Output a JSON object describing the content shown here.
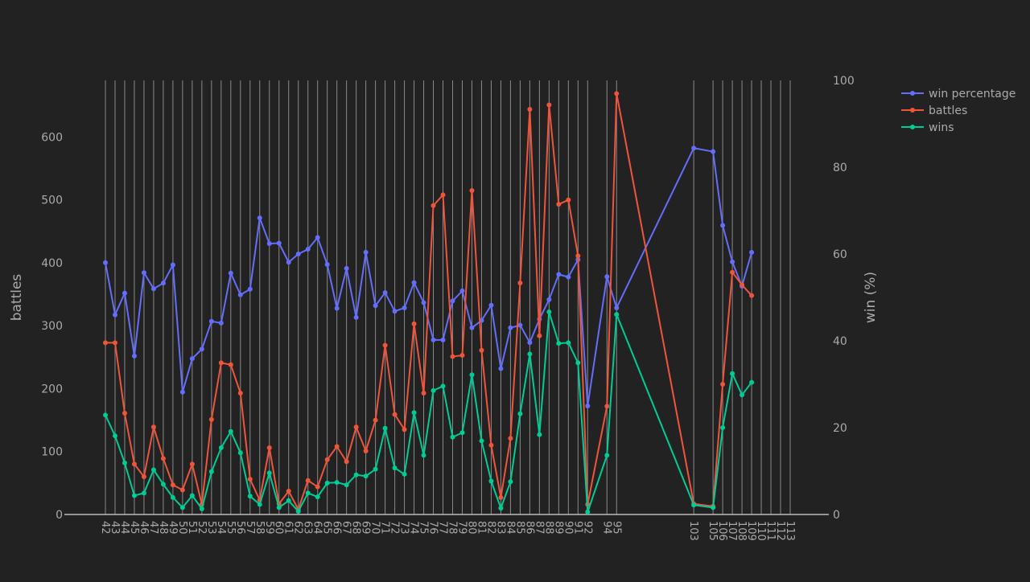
{
  "colors": {
    "background": "#222222",
    "grid": "#8a8a8a",
    "axis_text": "#aaaaaa",
    "win_percentage": "#636EFA",
    "battles": "#EF553B",
    "wins": "#00CC96"
  },
  "chart_data": {
    "type": "line",
    "x_labels": [
      "42",
      "43",
      "44",
      "45",
      "46",
      "47",
      "48",
      "49",
      "50",
      "51",
      "52",
      "53",
      "54",
      "55",
      "56",
      "57",
      "58",
      "59",
      "60",
      "61",
      "62",
      "63",
      "64",
      "65",
      "66",
      "67",
      "68",
      "69",
      "70",
      "71",
      "72",
      "73",
      "74",
      "75",
      "76",
      "77",
      "78",
      "79",
      "80",
      "81",
      "82",
      "83",
      "84",
      "85",
      "86",
      "87",
      "88",
      "89",
      "90",
      "91",
      "92",
      "94",
      "95",
      "103",
      "105",
      "106",
      "107",
      "108",
      "109",
      "110",
      "111",
      "112",
      "113"
    ],
    "xlabel": "",
    "left_axis": {
      "label": "battles",
      "range": [
        0,
        690
      ],
      "ticks": [
        0,
        100,
        200,
        300,
        400,
        500,
        600
      ]
    },
    "right_axis": {
      "label": "win (%)",
      "range": [
        0,
        100
      ],
      "ticks": [
        0,
        20,
        40,
        60,
        80,
        100
      ]
    },
    "grid": "vertical",
    "legend_position": "top-right",
    "series": [
      {
        "name": "win percentage",
        "axis": "right",
        "color_key": "win_percentage",
        "points": [
          [
            "42",
            58
          ],
          [
            "43",
            46
          ],
          [
            "44",
            51
          ],
          [
            "45",
            36.5
          ],
          [
            "46",
            55.7
          ],
          [
            "47",
            52
          ],
          [
            "48",
            53.3
          ],
          [
            "49",
            57.5
          ],
          [
            "50",
            28.2
          ],
          [
            "51",
            35.9
          ],
          [
            "52",
            38.1
          ],
          [
            "53",
            44.5
          ],
          [
            "54",
            44.1
          ],
          [
            "55",
            55.6
          ],
          [
            "56",
            50.6
          ],
          [
            "57",
            51.9
          ],
          [
            "58",
            68.3
          ],
          [
            "59",
            62.4
          ],
          [
            "60",
            62.5
          ],
          [
            "61",
            58.1
          ],
          [
            "62",
            60
          ],
          [
            "63",
            61.1
          ],
          [
            "64",
            63.8
          ],
          [
            "65",
            57.6
          ],
          [
            "66",
            47.5
          ],
          [
            "67",
            56.7
          ],
          [
            "68",
            45.4
          ],
          [
            "69",
            60.4
          ],
          [
            "70",
            48.1
          ],
          [
            "71",
            51.1
          ],
          [
            "72",
            46.8
          ],
          [
            "73",
            47.6
          ],
          [
            "74",
            53.4
          ],
          [
            "75",
            48.8
          ],
          [
            "76",
            40.2
          ],
          [
            "77",
            40.2
          ],
          [
            "78",
            49.2
          ],
          [
            "79",
            51.5
          ],
          [
            "80",
            43
          ],
          [
            "81",
            44.7
          ],
          [
            "82",
            48.2
          ],
          [
            "83",
            33.6
          ],
          [
            "84",
            43
          ],
          [
            "85",
            43.6
          ],
          [
            "86",
            39.6
          ],
          [
            "87",
            45
          ],
          [
            "88",
            49.5
          ],
          [
            "89",
            55.3
          ],
          [
            "90",
            54.7
          ],
          [
            "91",
            58.7
          ],
          [
            "92",
            25
          ],
          [
            "94",
            54.8
          ],
          [
            "95",
            47.6
          ],
          [
            "103",
            84.4
          ],
          [
            "105",
            83.6
          ],
          [
            "106",
            66.6
          ],
          [
            "107",
            58.2
          ],
          [
            "108",
            52.6
          ],
          [
            "109",
            60.4
          ]
        ]
      },
      {
        "name": "battles",
        "axis": "left",
        "color_key": "battles",
        "points": [
          [
            "42",
            273
          ],
          [
            "43",
            273
          ],
          [
            "44",
            161
          ],
          [
            "45",
            80
          ],
          [
            "46",
            60
          ],
          [
            "47",
            139
          ],
          [
            "48",
            89
          ],
          [
            "49",
            47
          ],
          [
            "50",
            39
          ],
          [
            "51",
            80
          ],
          [
            "52",
            16
          ],
          [
            "53",
            151
          ],
          [
            "54",
            241
          ],
          [
            "55",
            238
          ],
          [
            "56",
            193
          ],
          [
            "57",
            56
          ],
          [
            "58",
            23
          ],
          [
            "59",
            106
          ],
          [
            "60",
            17
          ],
          [
            "61",
            37
          ],
          [
            "62",
            8
          ],
          [
            "63",
            54
          ],
          [
            "64",
            44
          ],
          [
            "65",
            87
          ],
          [
            "66",
            108
          ],
          [
            "67",
            84
          ],
          [
            "68",
            139
          ],
          [
            "69",
            101
          ],
          [
            "70",
            150
          ],
          [
            "71",
            269
          ],
          [
            "72",
            159
          ],
          [
            "73",
            135
          ],
          [
            "74",
            303
          ],
          [
            "75",
            193
          ],
          [
            "76",
            491
          ],
          [
            "77",
            508
          ],
          [
            "78",
            251
          ],
          [
            "79",
            253
          ],
          [
            "80",
            515
          ],
          [
            "81",
            261
          ],
          [
            "82",
            110
          ],
          [
            "83",
            27
          ],
          [
            "84",
            121
          ],
          [
            "85",
            368
          ],
          [
            "86",
            644
          ],
          [
            "87",
            284
          ],
          [
            "88",
            651
          ],
          [
            "89",
            493
          ],
          [
            "90",
            500
          ],
          [
            "91",
            411
          ],
          [
            "92",
            16
          ],
          [
            "94",
            172
          ],
          [
            "95",
            669
          ],
          [
            "103",
            17
          ],
          [
            "105",
            13
          ],
          [
            "106",
            207
          ],
          [
            "107",
            385
          ],
          [
            "108",
            365
          ],
          [
            "109",
            348
          ]
        ]
      },
      {
        "name": "wins",
        "axis": "left",
        "color_key": "wins",
        "points": [
          [
            "42",
            158
          ],
          [
            "43",
            125
          ],
          [
            "44",
            82
          ],
          [
            "45",
            30
          ],
          [
            "46",
            34
          ],
          [
            "47",
            71
          ],
          [
            "48",
            48
          ],
          [
            "49",
            27
          ],
          [
            "50",
            11
          ],
          [
            "51",
            30
          ],
          [
            "52",
            9
          ],
          [
            "53",
            68
          ],
          [
            "54",
            106
          ],
          [
            "55",
            132
          ],
          [
            "56",
            98
          ],
          [
            "57",
            29
          ],
          [
            "58",
            16
          ],
          [
            "59",
            66
          ],
          [
            "60",
            11
          ],
          [
            "61",
            22
          ],
          [
            "62",
            5
          ],
          [
            "63",
            34
          ],
          [
            "64",
            28
          ],
          [
            "65",
            50
          ],
          [
            "66",
            51
          ],
          [
            "67",
            47
          ],
          [
            "68",
            63
          ],
          [
            "69",
            61
          ],
          [
            "70",
            72
          ],
          [
            "71",
            137
          ],
          [
            "72",
            74
          ],
          [
            "73",
            64
          ],
          [
            "74",
            162
          ],
          [
            "75",
            94
          ],
          [
            "76",
            197
          ],
          [
            "77",
            204
          ],
          [
            "78",
            123
          ],
          [
            "79",
            130
          ],
          [
            "80",
            222
          ],
          [
            "81",
            117
          ],
          [
            "82",
            53
          ],
          [
            "83",
            10
          ],
          [
            "84",
            52
          ],
          [
            "85",
            160
          ],
          [
            "86",
            255
          ],
          [
            "87",
            127
          ],
          [
            "88",
            322
          ],
          [
            "89",
            272
          ],
          [
            "90",
            273
          ],
          [
            "91",
            241
          ],
          [
            "92",
            4
          ],
          [
            "94",
            94
          ],
          [
            "95",
            318
          ],
          [
            "103",
            15
          ],
          [
            "105",
            11
          ],
          [
            "106",
            138
          ],
          [
            "107",
            224
          ],
          [
            "108",
            190
          ],
          [
            "109",
            210
          ]
        ]
      }
    ]
  }
}
